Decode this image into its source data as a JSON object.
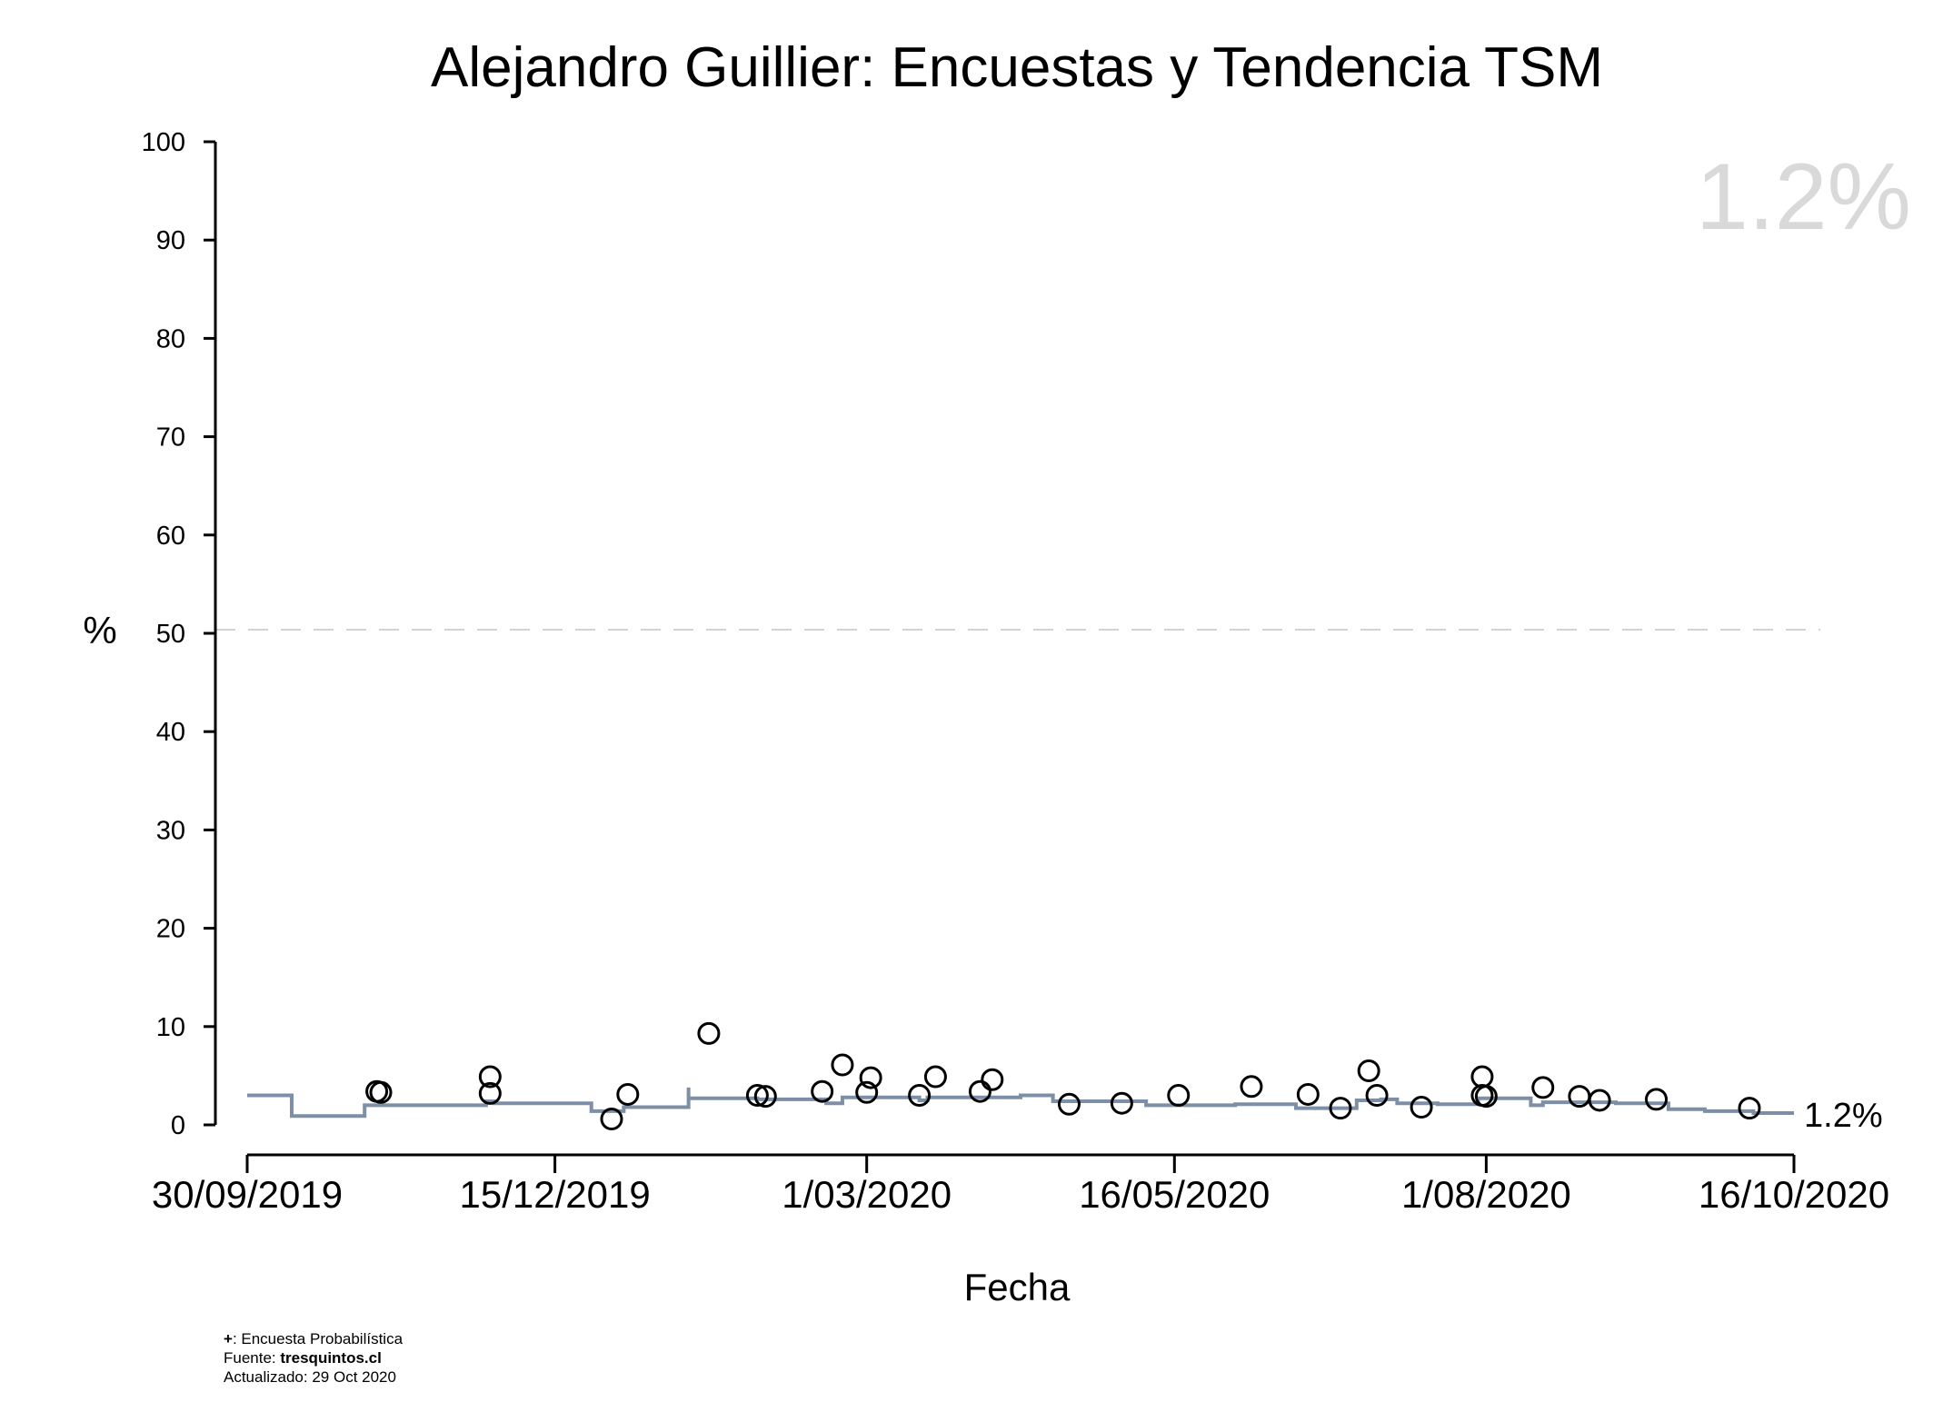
{
  "chart_data": {
    "type": "scatter",
    "title": "Alejandro Guillier: Encuestas y Tendencia TSM",
    "xlabel": "Fecha",
    "ylabel": "%",
    "ylim": [
      0,
      100
    ],
    "yticks": [
      0,
      10,
      20,
      30,
      40,
      50,
      60,
      70,
      80,
      90,
      100
    ],
    "xlim": [
      "2019-09-30",
      "2020-10-16"
    ],
    "xticks": [
      {
        "date": "2019-09-30",
        "label": "30/09/2019"
      },
      {
        "date": "2019-12-15",
        "label": "15/12/2019"
      },
      {
        "date": "2020-03-01",
        "label": "1/03/2020"
      },
      {
        "date": "2020-05-16",
        "label": "16/05/2020"
      },
      {
        "date": "2020-08-01",
        "label": "1/08/2020"
      },
      {
        "date": "2020-10-16",
        "label": "16/10/2020"
      }
    ],
    "reference_line": {
      "y": 50,
      "style": "dashed"
    },
    "latest_value_label": "1.2%",
    "end_label": "1.2%",
    "series": [
      {
        "name": "Encuestas",
        "marker": "open-circle",
        "points": [
          {
            "x": "2019-11-01",
            "y": 3.4
          },
          {
            "x": "2019-11-02",
            "y": 3.3
          },
          {
            "x": "2019-11-29",
            "y": 4.9
          },
          {
            "x": "2019-11-29",
            "y": 3.2
          },
          {
            "x": "2019-12-29",
            "y": 0.6
          },
          {
            "x": "2020-01-02",
            "y": 3.1
          },
          {
            "x": "2020-01-22",
            "y": 9.3
          },
          {
            "x": "2020-02-03",
            "y": 3.0
          },
          {
            "x": "2020-02-05",
            "y": 2.9
          },
          {
            "x": "2020-02-19",
            "y": 3.4
          },
          {
            "x": "2020-02-24",
            "y": 6.1
          },
          {
            "x": "2020-03-01",
            "y": 3.3
          },
          {
            "x": "2020-03-02",
            "y": 4.8
          },
          {
            "x": "2020-03-14",
            "y": 3.0
          },
          {
            "x": "2020-03-18",
            "y": 4.9
          },
          {
            "x": "2020-03-29",
            "y": 3.4
          },
          {
            "x": "2020-04-01",
            "y": 4.6
          },
          {
            "x": "2020-04-20",
            "y": 2.1
          },
          {
            "x": "2020-05-03",
            "y": 2.2
          },
          {
            "x": "2020-05-17",
            "y": 3.0
          },
          {
            "x": "2020-06-04",
            "y": 3.9
          },
          {
            "x": "2020-06-18",
            "y": 3.1
          },
          {
            "x": "2020-06-26",
            "y": 1.7
          },
          {
            "x": "2020-07-03",
            "y": 5.5
          },
          {
            "x": "2020-07-05",
            "y": 3.0
          },
          {
            "x": "2020-07-16",
            "y": 1.8
          },
          {
            "x": "2020-07-31",
            "y": 3.0
          },
          {
            "x": "2020-07-31",
            "y": 4.9
          },
          {
            "x": "2020-08-01",
            "y": 2.9
          },
          {
            "x": "2020-08-15",
            "y": 3.8
          },
          {
            "x": "2020-08-24",
            "y": 2.9
          },
          {
            "x": "2020-08-29",
            "y": 2.5
          },
          {
            "x": "2020-09-12",
            "y": 2.6
          },
          {
            "x": "2020-10-05",
            "y": 1.7
          }
        ]
      },
      {
        "name": "Tendencia TSM",
        "type": "step",
        "color": "#7d8fa6",
        "points": [
          {
            "x": "2019-09-30",
            "y": 3.0
          },
          {
            "x": "2019-10-11",
            "y": 0.9
          },
          {
            "x": "2019-10-29",
            "y": 2.0
          },
          {
            "x": "2019-11-28",
            "y": 2.4
          },
          {
            "x": "2019-11-30",
            "y": 2.2
          },
          {
            "x": "2019-12-24",
            "y": 1.4
          },
          {
            "x": "2020-01-01",
            "y": 1.8
          },
          {
            "x": "2020-01-17",
            "y": 3.8
          },
          {
            "x": "2020-01-17",
            "y": 2.7
          },
          {
            "x": "2020-02-03",
            "y": 2.6
          },
          {
            "x": "2020-02-20",
            "y": 2.2
          },
          {
            "x": "2020-02-24",
            "y": 2.8
          },
          {
            "x": "2020-03-14",
            "y": 2.5
          },
          {
            "x": "2020-03-16",
            "y": 2.8
          },
          {
            "x": "2020-04-08",
            "y": 3.0
          },
          {
            "x": "2020-04-16",
            "y": 2.4
          },
          {
            "x": "2020-05-09",
            "y": 2.0
          },
          {
            "x": "2020-05-31",
            "y": 2.1
          },
          {
            "x": "2020-06-15",
            "y": 1.7
          },
          {
            "x": "2020-06-30",
            "y": 2.5
          },
          {
            "x": "2020-07-06",
            "y": 2.6
          },
          {
            "x": "2020-07-10",
            "y": 2.2
          },
          {
            "x": "2020-07-20",
            "y": 2.1
          },
          {
            "x": "2020-07-30",
            "y": 2.7
          },
          {
            "x": "2020-08-12",
            "y": 2.0
          },
          {
            "x": "2020-08-15",
            "y": 2.3
          },
          {
            "x": "2020-09-02",
            "y": 2.2
          },
          {
            "x": "2020-09-15",
            "y": 1.6
          },
          {
            "x": "2020-09-24",
            "y": 1.4
          },
          {
            "x": "2020-10-06",
            "y": 1.2
          },
          {
            "x": "2020-10-16",
            "y": 1.2
          }
        ]
      }
    ]
  },
  "footnotes": {
    "line1_symbol": "+",
    "line1_text": ": Encuesta Probabilística",
    "line2_prefix": "Fuente: ",
    "line2_source": "tresquintos.cl",
    "line3_text": "Actualizado: 29 Oct 2020"
  },
  "colors": {
    "trend": "#7d8fa6",
    "reference": "#d3d3d3",
    "big_value": "#d9d9d9",
    "axis": "#000000"
  }
}
